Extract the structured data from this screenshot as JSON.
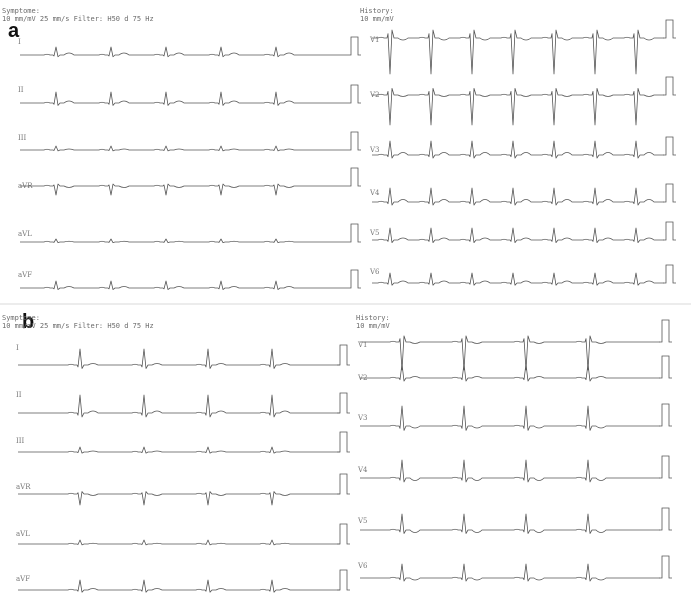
{
  "panels": [
    {
      "label": "a",
      "left_header": [
        "Symptome:",
        "10 mm/mV 25 mm/s Filter: H50 d 75 Hz"
      ],
      "right_header": [
        "History:",
        "10 mm/mV"
      ],
      "left_leads": [
        "I",
        "II",
        "III",
        "aVR",
        "aVL",
        "aVF"
      ],
      "right_leads": [
        "V1",
        "V2",
        "V3",
        "V4",
        "V5",
        "V6"
      ]
    },
    {
      "label": "b",
      "left_header": [
        "Symptome:",
        "10 mm/mV 25 mm/s Filter: H50 d 75 Hz"
      ],
      "right_header": [
        "History:",
        "10 mm/mV"
      ],
      "left_leads": [
        "I",
        "II",
        "III",
        "aVR",
        "aVL",
        "aVF"
      ],
      "right_leads": [
        "V1",
        "V2",
        "V3",
        "V4",
        "V5",
        "V6"
      ]
    }
  ]
}
